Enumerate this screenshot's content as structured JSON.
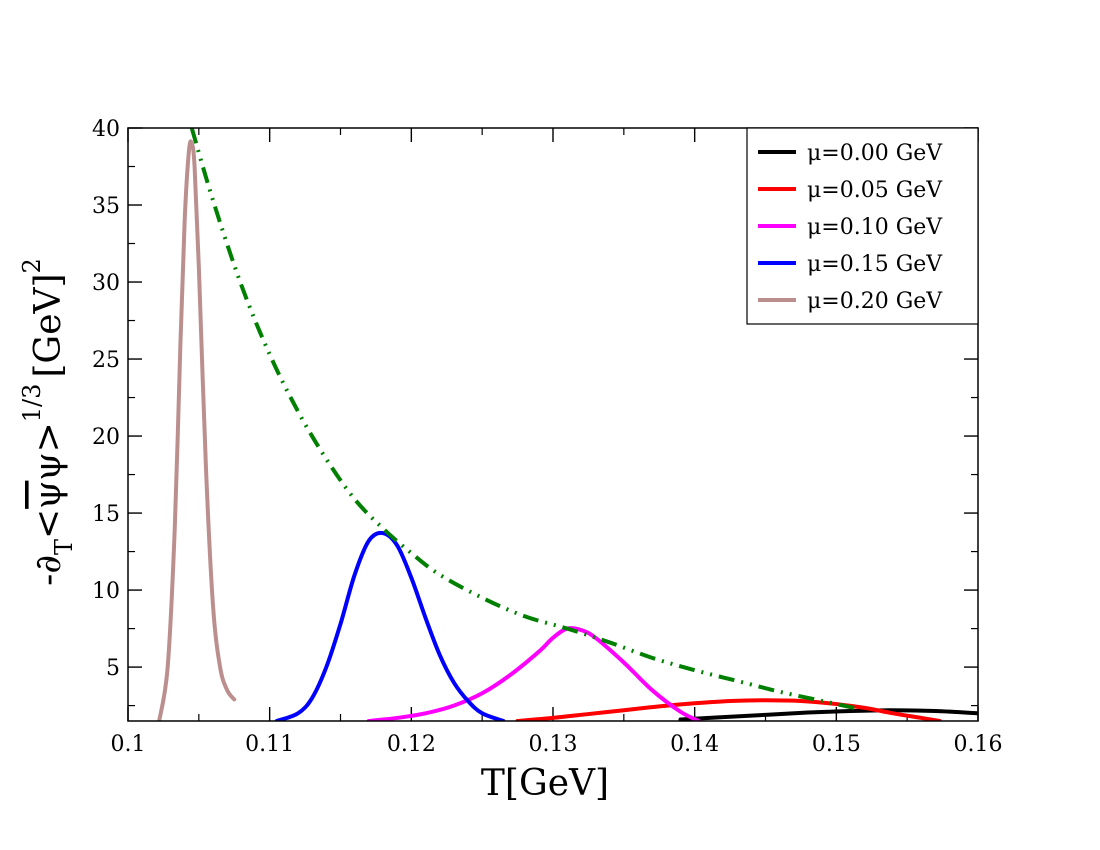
{
  "chart_data": {
    "type": "line",
    "xlim": [
      0.1,
      0.16
    ],
    "ylim": [
      1.5,
      40
    ],
    "x_ticks": [
      0.1,
      0.11,
      0.12,
      0.13,
      0.14,
      0.15,
      0.16
    ],
    "x_tick_labels": [
      "0.1",
      "0.11",
      "0.12",
      "0.13",
      "0.14",
      "0.15",
      "0.16"
    ],
    "y_ticks": [
      5,
      10,
      15,
      20,
      25,
      30,
      35,
      40
    ],
    "y_tick_labels": [
      "5",
      "10",
      "15",
      "20",
      "25",
      "30",
      "35",
      "40"
    ],
    "xlabel": "T[GeV]",
    "ylabel": {
      "prefix": "-∂",
      "subscript": "T",
      "open": "<",
      "psibar": "ψ",
      "psi": "ψ",
      "close": ">",
      "exponent": "1/3",
      "unit": "[GeV]",
      "unit_exponent": "2"
    },
    "legend_position": "top-right",
    "series": [
      {
        "name": "μ=0.00 GeV",
        "color": "#000000",
        "x": [
          0.139,
          0.142,
          0.145,
          0.148,
          0.151,
          0.154,
          0.157,
          0.16
        ],
        "y": [
          1.6,
          1.75,
          1.9,
          2.05,
          2.15,
          2.2,
          2.15,
          2.0
        ]
      },
      {
        "name": "μ=0.05 GeV",
        "color": "#ff0000",
        "x": [
          0.1275,
          0.13,
          0.1325,
          0.135,
          0.1375,
          0.14,
          0.1425,
          0.145,
          0.1475,
          0.15,
          0.152,
          0.154,
          0.156,
          0.1573
        ],
        "y": [
          1.5,
          1.7,
          1.95,
          2.2,
          2.45,
          2.65,
          2.8,
          2.85,
          2.8,
          2.6,
          2.35,
          2.0,
          1.7,
          1.5
        ]
      },
      {
        "name": "μ=0.10 GeV",
        "color": "#ff00ff",
        "x": [
          0.117,
          0.119,
          0.121,
          0.123,
          0.125,
          0.127,
          0.129,
          0.13,
          0.131,
          0.132,
          0.133,
          0.135,
          0.137,
          0.139,
          0.1403
        ],
        "y": [
          1.5,
          1.7,
          2.0,
          2.5,
          3.3,
          4.5,
          6.0,
          6.9,
          7.5,
          7.4,
          6.9,
          5.3,
          3.5,
          2.1,
          1.5
        ]
      },
      {
        "name": "μ=0.15 GeV",
        "color": "#0000ff",
        "x": [
          0.1105,
          0.112,
          0.113,
          0.114,
          0.115,
          0.116,
          0.117,
          0.118,
          0.119,
          0.12,
          0.121,
          0.122,
          0.123,
          0.124,
          0.125,
          0.1265
        ],
        "y": [
          1.5,
          2.0,
          3.0,
          5.0,
          7.8,
          11.0,
          13.2,
          13.7,
          12.9,
          10.8,
          8.2,
          5.8,
          4.0,
          2.8,
          2.0,
          1.5
        ]
      },
      {
        "name": "μ=0.20 GeV",
        "color": "#bc8f8f",
        "x": [
          0.1022,
          0.1028,
          0.1033,
          0.1037,
          0.104,
          0.1043,
          0.1045,
          0.1047,
          0.105,
          0.1055,
          0.106,
          0.1065,
          0.107,
          0.1075
        ],
        "y": [
          1.5,
          5.0,
          14.0,
          26.0,
          34.0,
          38.5,
          39.0,
          37.5,
          31.0,
          18.0,
          9.0,
          5.0,
          3.5,
          2.9
        ]
      },
      {
        "name": "",
        "color": "#008000",
        "style": "dash-dot-dot",
        "x": [
          0.1045,
          0.106,
          0.108,
          0.11,
          0.112,
          0.114,
          0.116,
          0.118,
          0.12,
          0.122,
          0.125,
          0.128,
          0.131,
          0.134,
          0.137,
          0.14,
          0.143,
          0.146,
          0.149,
          0.1515
        ],
        "y": [
          40.0,
          35.3,
          29.8,
          25.3,
          21.6,
          18.5,
          15.9,
          14.0,
          12.4,
          11.0,
          9.5,
          8.3,
          7.5,
          6.6,
          5.6,
          4.8,
          4.1,
          3.4,
          2.8,
          2.3
        ]
      }
    ]
  }
}
